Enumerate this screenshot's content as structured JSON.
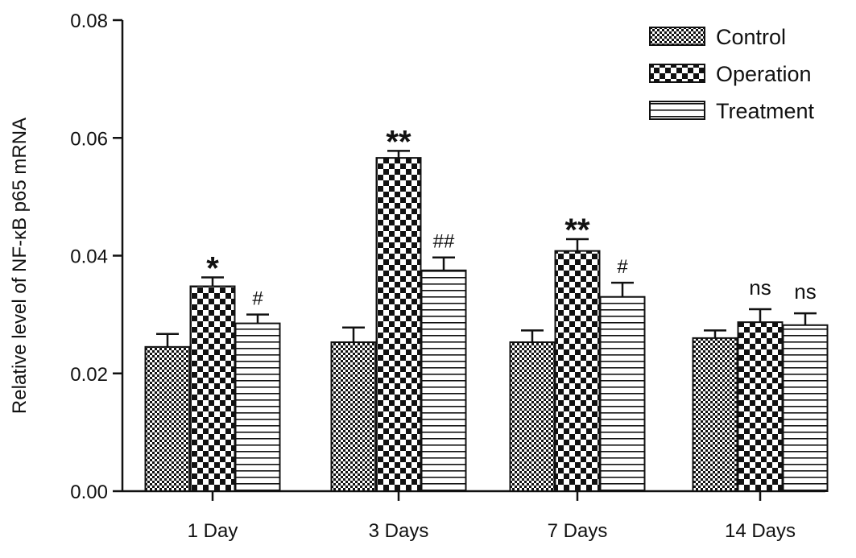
{
  "chart_data": {
    "type": "bar",
    "title": "",
    "xlabel": "",
    "ylabel": "Relative level of NF-κB p65 mRNA",
    "ylim": [
      0,
      0.08
    ],
    "yticks": [
      "0.00",
      "0.02",
      "0.04",
      "0.06",
      "0.08"
    ],
    "ytick_values": [
      0,
      0.02,
      0.04,
      0.06,
      0.08
    ],
    "categories": [
      "1 Day",
      "3 Days",
      "7 Days",
      "14 Days"
    ],
    "series": [
      {
        "name": "Control",
        "pattern": "fine-check",
        "values": [
          0.0245,
          0.0253,
          0.0253,
          0.026
        ],
        "errors": [
          0.0022,
          0.0025,
          0.002,
          0.0013
        ]
      },
      {
        "name": "Operation",
        "pattern": "coarse-check",
        "values": [
          0.0348,
          0.0566,
          0.0408,
          0.0287
        ],
        "errors": [
          0.0015,
          0.0012,
          0.002,
          0.0022
        ]
      },
      {
        "name": "Treatment",
        "pattern": "horizontal-lines",
        "values": [
          0.0285,
          0.0375,
          0.033,
          0.0282
        ],
        "errors": [
          0.0015,
          0.0022,
          0.0024,
          0.002
        ]
      }
    ],
    "annotations": [
      {
        "category": "1 Day",
        "series": "Operation",
        "text": "*"
      },
      {
        "category": "1 Day",
        "series": "Treatment",
        "text": "#"
      },
      {
        "category": "3 Days",
        "series": "Operation",
        "text": "**"
      },
      {
        "category": "3 Days",
        "series": "Treatment",
        "text": "##"
      },
      {
        "category": "7 Days",
        "series": "Operation",
        "text": "**"
      },
      {
        "category": "7 Days",
        "series": "Treatment",
        "text": "#"
      },
      {
        "category": "14 Days",
        "series": "Operation",
        "text": "ns"
      },
      {
        "category": "14 Days",
        "series": "Treatment",
        "text": "ns"
      }
    ],
    "legend_position": "top-right",
    "grid": false,
    "colors": {
      "ink": "#111111",
      "background": "#ffffff"
    }
  }
}
